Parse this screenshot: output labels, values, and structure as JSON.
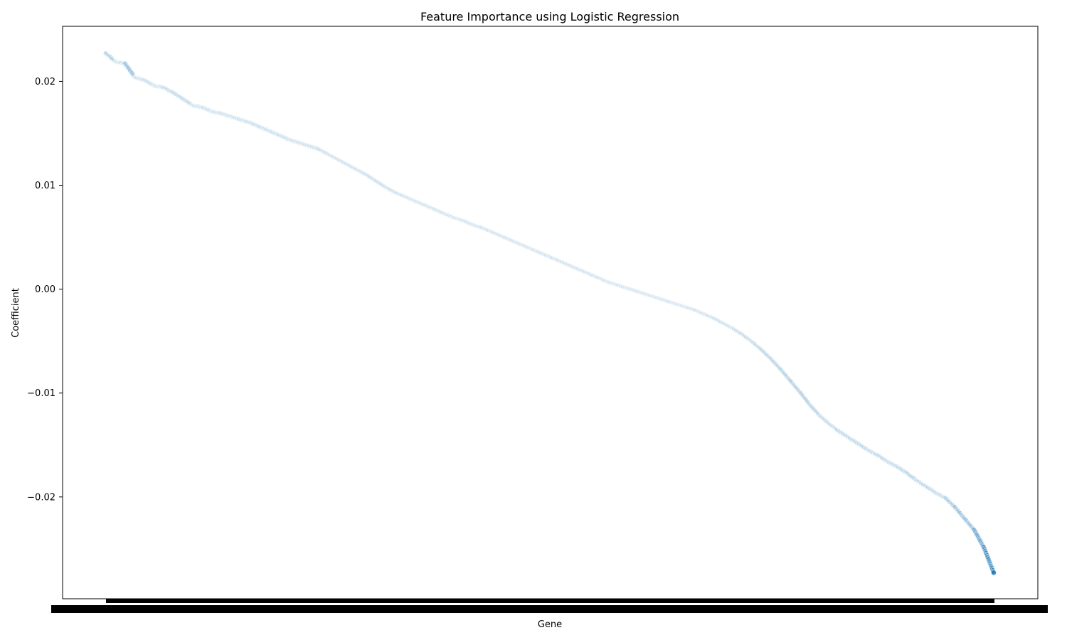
{
  "chart_data": {
    "type": "scatter",
    "title": "Feature Importance using Logistic Regression",
    "xlabel": "Gene",
    "ylabel": "Coefficient",
    "ylim": [
      -0.0298,
      0.0253
    ],
    "yticks": [
      {
        "value": 0.02,
        "label": "0.02"
      },
      {
        "value": 0.01,
        "label": "0.01"
      },
      {
        "value": 0.0,
        "label": "0.00"
      },
      {
        "value": -0.01,
        "label": "−0.01"
      },
      {
        "value": -0.02,
        "label": "−0.02"
      }
    ],
    "x_tick_labels": "overlapping gene names (illegible)",
    "grid": false,
    "legend": "none",
    "n_points_approx": 2000,
    "sorted": "descending",
    "point_color": "#1f77b4",
    "series": [
      {
        "name": "",
        "values_sampled": [
          0.0227,
          0.0219,
          0.0217,
          0.0204,
          0.0201,
          0.0196,
          0.0194,
          0.0189,
          0.0183,
          0.0177,
          0.0175,
          0.0171,
          0.0169,
          0.0166,
          0.0163,
          0.016,
          0.0156,
          0.0152,
          0.0148,
          0.0144,
          0.0141,
          0.0138,
          0.0135,
          0.013,
          0.0125,
          0.012,
          0.0115,
          0.011,
          0.0104,
          0.0098,
          0.0093,
          0.0089,
          0.0085,
          0.0081,
          0.0077,
          0.0073,
          0.0069,
          0.0066,
          0.0062,
          0.0059,
          0.0055,
          0.0051,
          0.0047,
          0.0043,
          0.0039,
          0.0035,
          0.0031,
          0.0027,
          0.0023,
          0.0019,
          0.0015,
          0.0011,
          0.0007,
          0.0004,
          0.0001,
          -0.0002,
          -0.0005,
          -0.0008,
          -0.0011,
          -0.0014,
          -0.0017,
          -0.002,
          -0.0024,
          -0.0028,
          -0.0033,
          -0.0038,
          -0.0044,
          -0.0051,
          -0.0059,
          -0.0068,
          -0.0078,
          -0.0089,
          -0.01,
          -0.0112,
          -0.0122,
          -0.013,
          -0.0137,
          -0.0143,
          -0.0149,
          -0.0155,
          -0.016,
          -0.0166,
          -0.0171,
          -0.0177,
          -0.0184,
          -0.019,
          -0.0196,
          -0.0201,
          -0.021,
          -0.0221,
          -0.0232,
          -0.0249,
          -0.0273
        ]
      }
    ]
  }
}
